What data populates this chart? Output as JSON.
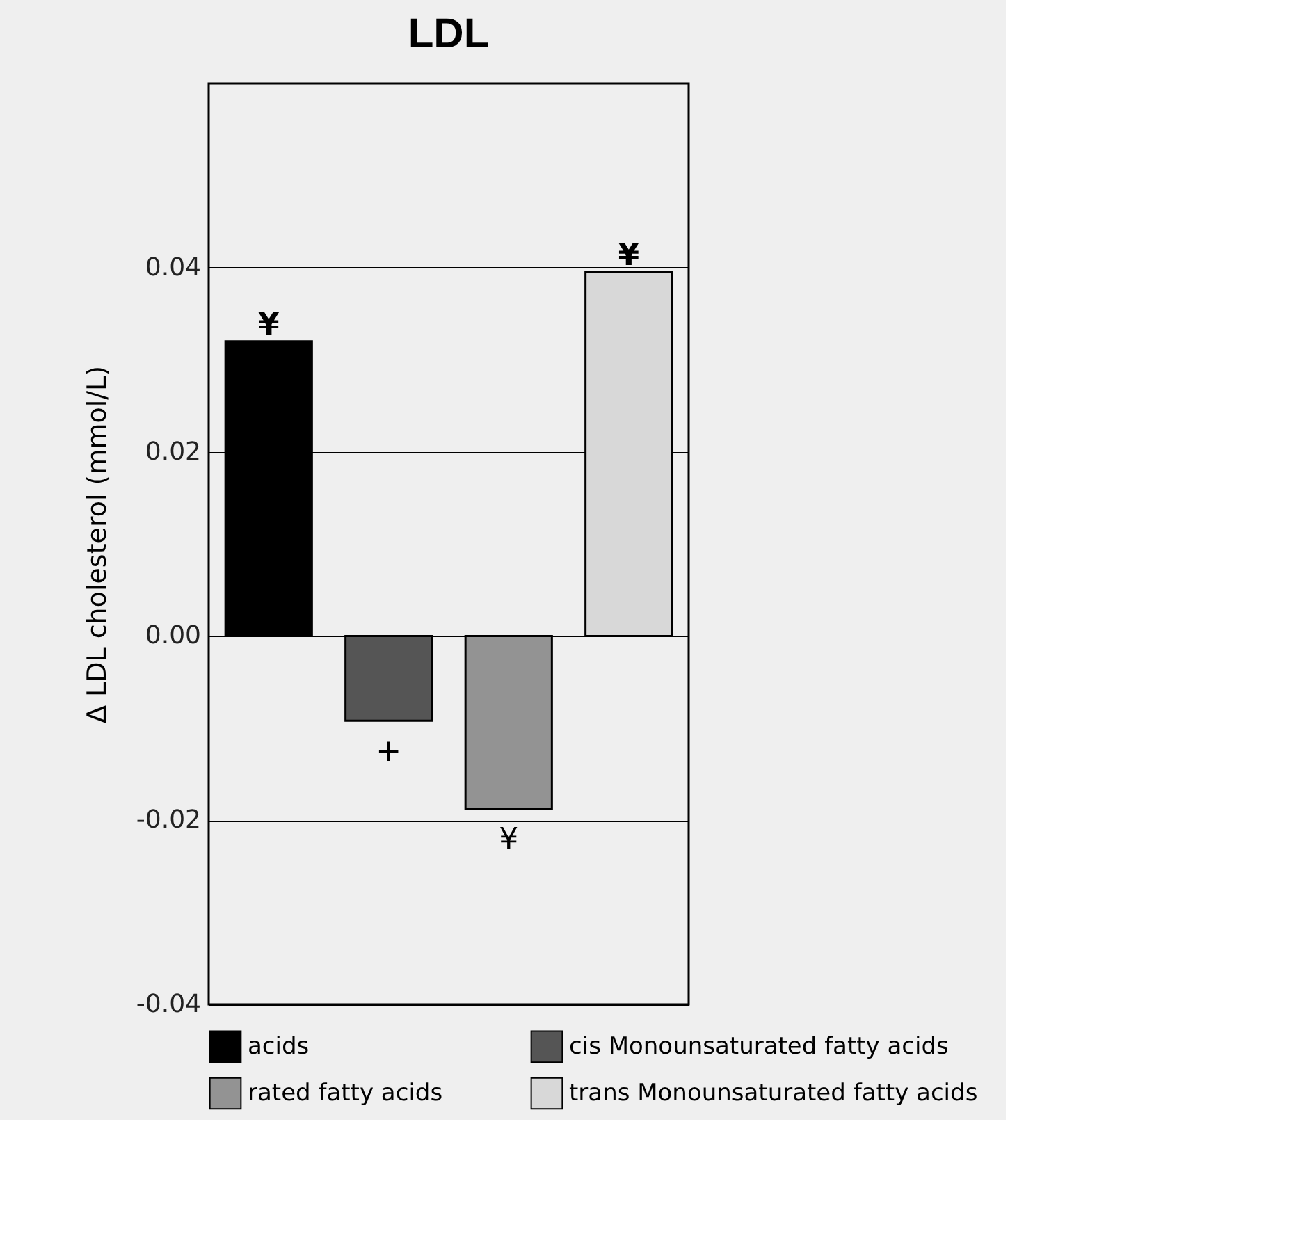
{
  "chart_data": {
    "type": "bar",
    "title": "LDL",
    "ylabel": "Δ LDL cholesterol (mmol/L)",
    "categories": [
      null,
      null,
      null,
      null
    ],
    "series": [
      {
        "name": "acids",
        "color": "#000000",
        "values": [
          0.032,
          null,
          null,
          null
        ]
      },
      {
        "name": "cis Monounsaturated fatty acids",
        "color": "#555555",
        "values": [
          null,
          -0.0092,
          null,
          null
        ]
      },
      {
        "name": "rated fatty acids",
        "color": "#939393",
        "values": [
          null,
          null,
          -0.0188,
          null
        ]
      },
      {
        "name": "trans Monounsaturated fatty acids",
        "color": "#d8d8d8",
        "values": [
          null,
          null,
          null,
          0.0395
        ]
      }
    ],
    "ylim": [
      -0.04,
      0.06
    ],
    "yticks": [
      {
        "value": -0.04,
        "label": "-0.04"
      },
      {
        "value": -0.02,
        "label": "-0.02"
      },
      {
        "value": 0,
        "label": "0.00"
      },
      {
        "value": 0.02,
        "label": "0.02"
      },
      {
        "value": 0.04,
        "label": "0.04"
      }
    ],
    "grid": "y",
    "legend": "bottom",
    "tick_labels": "y",
    "annotations": [
      {
        "text": "¥",
        "y": 0.032
      },
      {
        "text": "+",
        "y": -0.0092
      },
      {
        "text": "¥",
        "y": -0.0188
      },
      {
        "text": "¥",
        "y": 0.0395
      }
    ]
  }
}
